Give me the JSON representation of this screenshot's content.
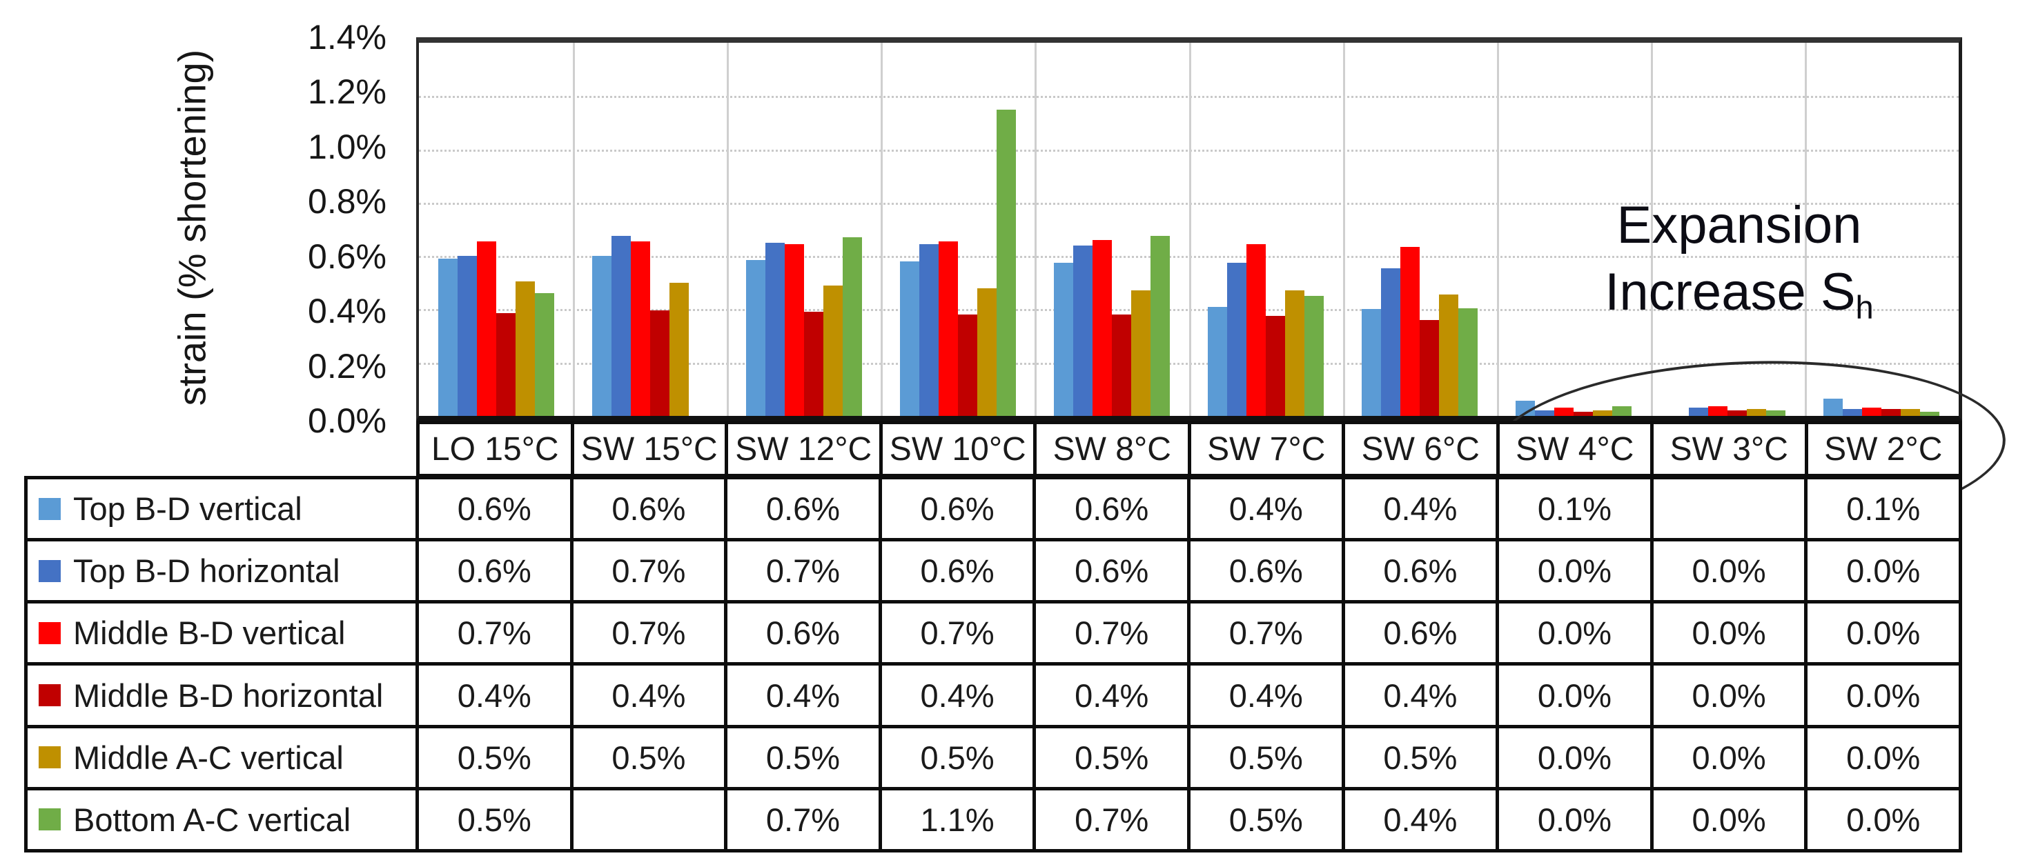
{
  "chart_data": {
    "type": "bar",
    "title": "",
    "ylabel": "strain (% shortening)",
    "xlabel": "",
    "ylim_percent": [
      0.0,
      1.4
    ],
    "ytick_step_percent": 0.2,
    "grid": true,
    "legend_position": "table-left-column",
    "yticks": [
      {
        "value": 1.4,
        "label": "1.4%"
      },
      {
        "value": 1.2,
        "label": "1.2%"
      },
      {
        "value": 1.0,
        "label": "1.0%"
      },
      {
        "value": 0.8,
        "label": "0.8%"
      },
      {
        "value": 0.6,
        "label": "0.6%"
      },
      {
        "value": 0.4,
        "label": "0.4%"
      },
      {
        "value": 0.2,
        "label": "0.2%"
      },
      {
        "value": 0.0,
        "label": "0.0%"
      }
    ],
    "categories": [
      "LO 15°C",
      "SW 15°C",
      "SW 12°C",
      "SW 10°C",
      "SW 8°C",
      "SW 7°C",
      "SW 6°C",
      "SW 4°C",
      "SW 3°C",
      "SW 2°C"
    ],
    "series": [
      {
        "name": "Top B-D vertical",
        "color": "#5B9BD5",
        "values_percent": [
          0.59,
          0.6,
          0.585,
          0.58,
          0.575,
          0.41,
          0.4,
          0.058,
          0,
          0.065
        ],
        "table_values": [
          "0.6%",
          "0.6%",
          "0.6%",
          "0.6%",
          "0.6%",
          "0.4%",
          "0.4%",
          "0.1%",
          "",
          "0.1%"
        ]
      },
      {
        "name": "Top B-D horizontal",
        "color": "#4472C4",
        "values_percent": [
          0.6,
          0.675,
          0.65,
          0.645,
          0.64,
          0.575,
          0.555,
          0.02,
          0.03,
          0.025
        ],
        "table_values": [
          "0.6%",
          "0.7%",
          "0.7%",
          "0.6%",
          "0.6%",
          "0.6%",
          "0.6%",
          "0.0%",
          "0.0%",
          "0.0%"
        ]
      },
      {
        "name": "Middle B-D vertical",
        "color": "#FF0000",
        "values_percent": [
          0.655,
          0.655,
          0.645,
          0.655,
          0.66,
          0.645,
          0.635,
          0.03,
          0.035,
          0.03
        ],
        "table_values": [
          "0.7%",
          "0.7%",
          "0.6%",
          "0.7%",
          "0.7%",
          "0.7%",
          "0.6%",
          "0.0%",
          "0.0%",
          "0.0%"
        ]
      },
      {
        "name": "Middle B-D horizontal",
        "color": "#C00000",
        "values_percent": [
          0.385,
          0.395,
          0.39,
          0.38,
          0.38,
          0.375,
          0.36,
          0.015,
          0.02,
          0.025
        ],
        "table_values": [
          "0.4%",
          "0.4%",
          "0.4%",
          "0.4%",
          "0.4%",
          "0.4%",
          "0.4%",
          "0.0%",
          "0.0%",
          "0.0%"
        ]
      },
      {
        "name": "Middle A-C vertical",
        "color": "#BF9000",
        "values_percent": [
          0.505,
          0.5,
          0.49,
          0.48,
          0.47,
          0.47,
          0.455,
          0.02,
          0.025,
          0.025
        ],
        "table_values": [
          "0.5%",
          "0.5%",
          "0.5%",
          "0.5%",
          "0.5%",
          "0.5%",
          "0.5%",
          "0.0%",
          "0.0%",
          "0.0%"
        ]
      },
      {
        "name": "Bottom A-C vertical",
        "color": "#70AD47",
        "values_percent": [
          0.46,
          0,
          0.67,
          1.15,
          0.675,
          0.45,
          0.405,
          0.035,
          0.02,
          0.015
        ],
        "table_values": [
          "0.5%",
          "",
          "0.7%",
          "1.1%",
          "0.7%",
          "0.5%",
          "0.4%",
          "0.0%",
          "0.0%",
          "0.0%"
        ]
      }
    ],
    "annotation": {
      "line1": "Expansion",
      "line2_main": "Increase S",
      "line2_sub": "h",
      "highlighted_categories": [
        "SW 4°C",
        "SW 3°C",
        "SW 2°C"
      ]
    }
  }
}
